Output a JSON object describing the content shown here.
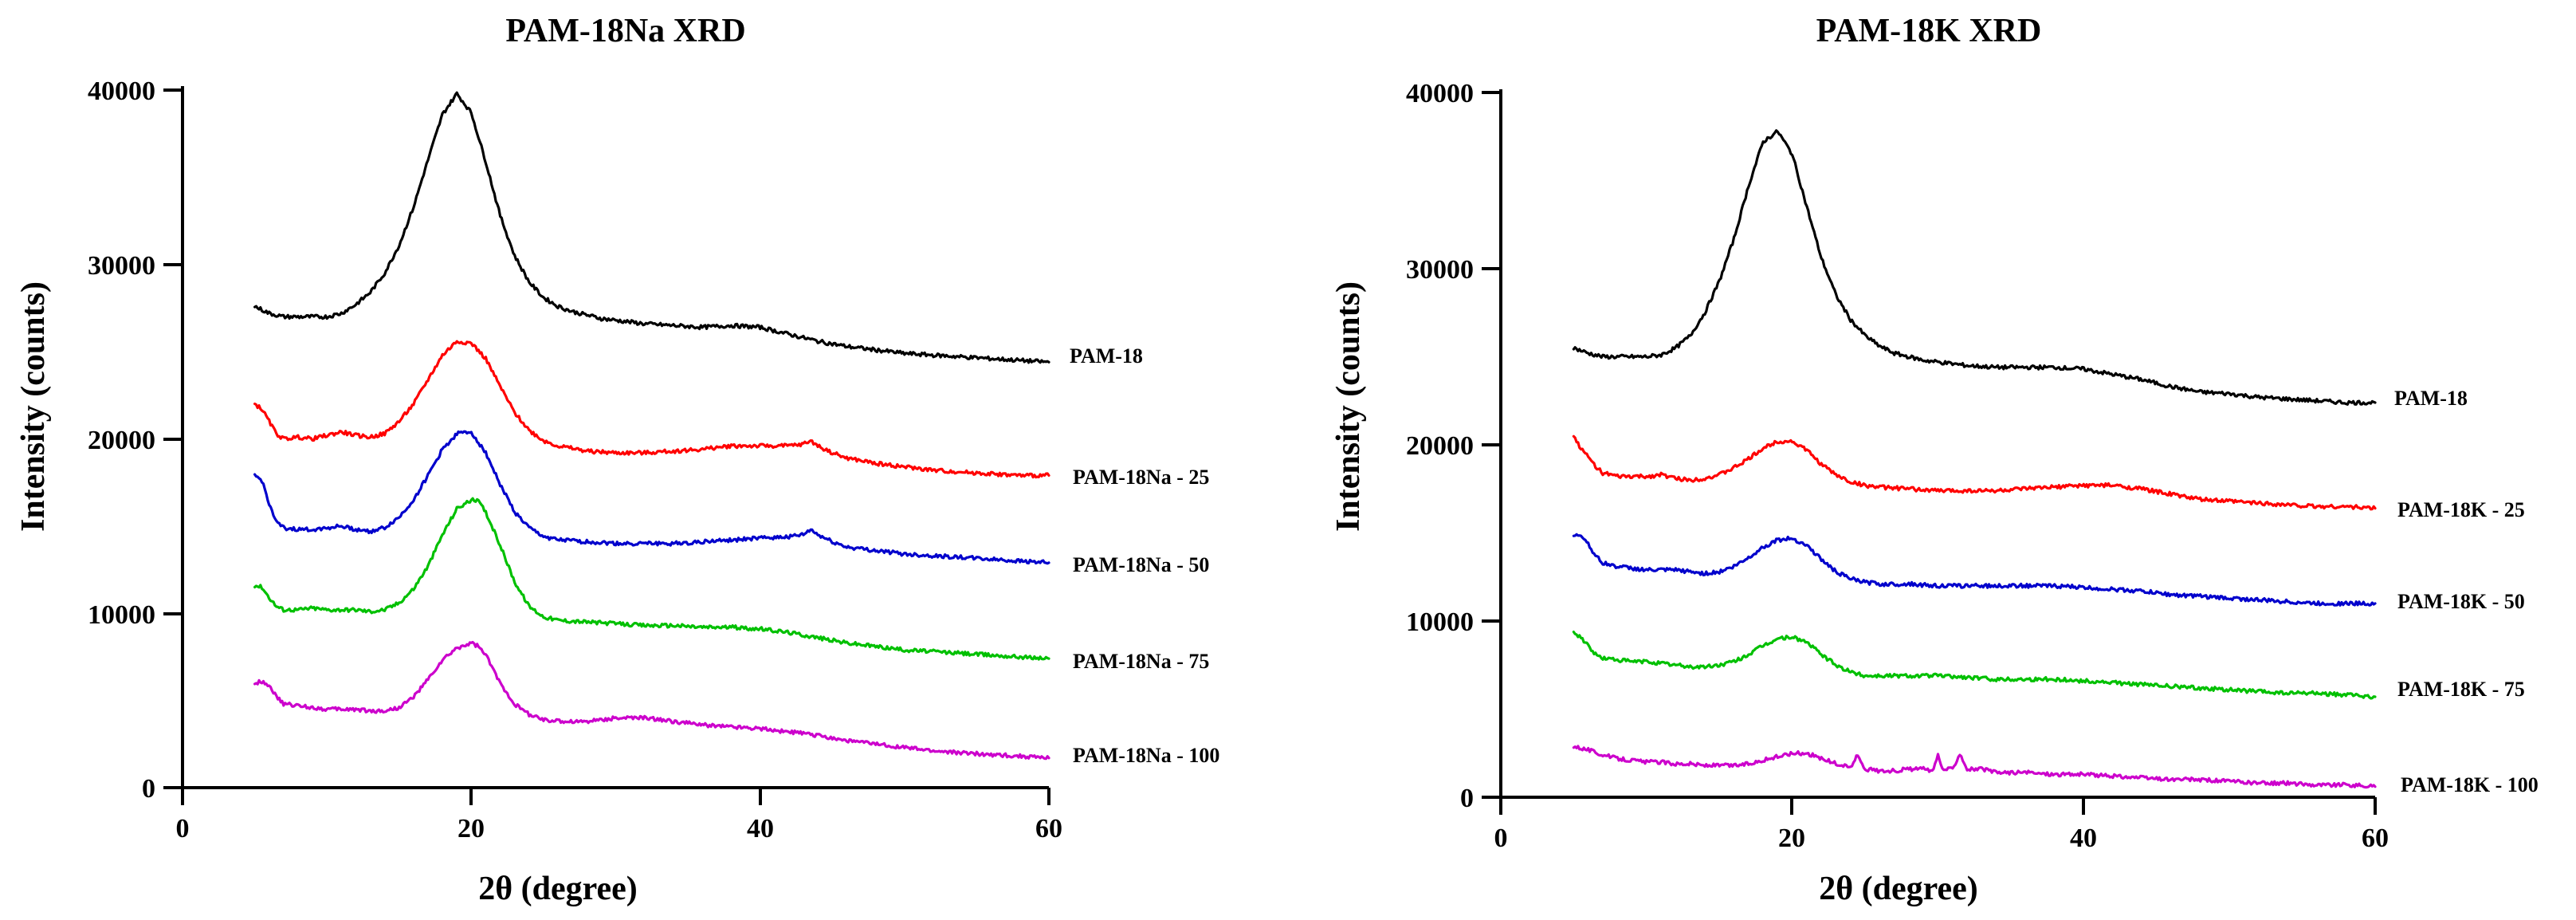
{
  "chart_data": [
    {
      "type": "line",
      "title": "PAM-18Na XRD",
      "xlabel": "2θ (degree)",
      "ylabel": "Intensity (counts)",
      "xlim": [
        0,
        60
      ],
      "ylim": [
        0,
        40000
      ],
      "xticks": [
        0,
        20,
        40,
        60
      ],
      "yticks": [
        0,
        10000,
        20000,
        30000,
        40000
      ],
      "grid": false,
      "series": [
        {
          "name": "PAM-18",
          "color": "#000000",
          "x": [
            5,
            6,
            7,
            8,
            9,
            10,
            11,
            12,
            13,
            14,
            15,
            16,
            17,
            18,
            19,
            20,
            21,
            22,
            23,
            24,
            25,
            26,
            27,
            28,
            29,
            30,
            32,
            34,
            36,
            38,
            40,
            42,
            44,
            46,
            48,
            50,
            52,
            54,
            56,
            58,
            60
          ],
          "y": [
            27600,
            27200,
            27000,
            27000,
            27000,
            27000,
            27200,
            27700,
            28400,
            29500,
            31100,
            33300,
            36000,
            38600,
            39800,
            38700,
            35900,
            32800,
            30500,
            29000,
            28100,
            27600,
            27300,
            27100,
            26900,
            26800,
            26600,
            26500,
            26400,
            26500,
            26400,
            26000,
            25600,
            25300,
            25100,
            24900,
            24800,
            24700,
            24600,
            24500,
            24400
          ]
        },
        {
          "name": "PAM-18Na - 25",
          "color": "#ff0000",
          "x": [
            5,
            5.5,
            6,
            6.5,
            7,
            8,
            9,
            10,
            11,
            12,
            13,
            14,
            15,
            16,
            17,
            18,
            19,
            20,
            21,
            22,
            23,
            24,
            25,
            26,
            28,
            30,
            32,
            34,
            36,
            38,
            40,
            42,
            43,
            43.5,
            44,
            45,
            46,
            48,
            50,
            52,
            54,
            56,
            58,
            60
          ],
          "y": [
            22000,
            21700,
            21000,
            20300,
            20000,
            20100,
            20000,
            20200,
            20400,
            20200,
            20100,
            20300,
            21000,
            22000,
            23400,
            24800,
            25600,
            25500,
            24600,
            23000,
            21500,
            20500,
            19900,
            19600,
            19300,
            19200,
            19200,
            19300,
            19400,
            19600,
            19600,
            19600,
            19700,
            19900,
            19600,
            19200,
            18900,
            18600,
            18400,
            18200,
            18100,
            18000,
            17900,
            17900
          ]
        },
        {
          "name": "PAM-18Na - 50",
          "color": "#0000cc",
          "x": [
            5,
            5.5,
            6,
            6.5,
            7,
            8,
            9,
            10,
            11,
            12,
            13,
            14,
            15,
            16,
            17,
            18,
            19,
            20,
            21,
            22,
            23,
            24,
            25,
            26,
            28,
            30,
            32,
            34,
            36,
            38,
            40,
            42,
            43,
            43.5,
            44,
            45,
            46,
            48,
            50,
            52,
            54,
            56,
            58,
            60
          ],
          "y": [
            17900,
            17600,
            16300,
            15200,
            14900,
            14800,
            14800,
            14900,
            15000,
            14800,
            14700,
            14900,
            15500,
            16500,
            17900,
            19400,
            20300,
            20400,
            19200,
            17400,
            15800,
            14900,
            14400,
            14200,
            14100,
            14000,
            14000,
            14000,
            14100,
            14200,
            14300,
            14400,
            14500,
            14800,
            14500,
            14100,
            13800,
            13600,
            13400,
            13300,
            13200,
            13100,
            13000,
            12900
          ]
        },
        {
          "name": "PAM-18Na - 75",
          "color": "#00c000",
          "x": [
            5,
            5.5,
            6,
            6.5,
            7,
            8,
            9,
            10,
            11,
            12,
            13,
            14,
            15,
            16,
            17,
            18,
            19,
            20,
            20.5,
            21,
            22,
            23,
            24,
            25,
            26,
            28,
            30,
            32,
            34,
            36,
            38,
            40,
            42,
            44,
            46,
            48,
            50,
            52,
            54,
            56,
            58,
            60
          ],
          "y": [
            11600,
            11500,
            10900,
            10400,
            10200,
            10200,
            10300,
            10200,
            10200,
            10200,
            10100,
            10200,
            10600,
            11400,
            12700,
            14500,
            16000,
            16500,
            16400,
            15800,
            13900,
            11800,
            10400,
            9800,
            9600,
            9500,
            9400,
            9300,
            9300,
            9200,
            9200,
            9100,
            8900,
            8600,
            8300,
            8100,
            7900,
            7800,
            7700,
            7600,
            7500,
            7400
          ]
        },
        {
          "name": "PAM-18Na - 100",
          "color": "#cc00cc",
          "x": [
            5,
            5.5,
            6,
            6.5,
            7,
            8,
            9,
            10,
            11,
            12,
            13,
            14,
            15,
            16,
            17,
            18,
            19,
            20,
            20.5,
            21,
            22,
            23,
            24,
            25,
            26,
            28,
            30,
            32,
            34,
            36,
            38,
            40,
            42,
            44,
            46,
            48,
            50,
            52,
            54,
            56,
            58,
            60
          ],
          "y": [
            6000,
            6100,
            5900,
            5200,
            4800,
            4700,
            4600,
            4500,
            4500,
            4500,
            4400,
            4400,
            4600,
            5200,
            6200,
            7300,
            8000,
            8300,
            8100,
            7600,
            6000,
            4800,
            4200,
            3900,
            3800,
            3800,
            4000,
            4000,
            3800,
            3600,
            3500,
            3400,
            3200,
            3000,
            2700,
            2500,
            2300,
            2100,
            2000,
            1900,
            1800,
            1700
          ]
        }
      ]
    },
    {
      "type": "line",
      "title": "PAM-18K XRD",
      "xlabel": "2θ (degree)",
      "ylabel": "Intensity (counts)",
      "xlim": [
        0,
        60
      ],
      "ylim": [
        0,
        40000
      ],
      "xticks": [
        0,
        20,
        40,
        60
      ],
      "yticks": [
        0,
        10000,
        20000,
        30000,
        40000
      ],
      "grid": false,
      "series": [
        {
          "name": "PAM-18",
          "color": "#000000",
          "x": [
            5,
            6,
            7,
            8,
            9,
            10,
            11,
            12,
            13,
            14,
            15,
            16,
            17,
            18,
            19,
            20,
            21,
            22,
            23,
            24,
            25,
            26,
            27,
            28,
            29,
            30,
            32,
            34,
            36,
            38,
            40,
            42,
            44,
            46,
            48,
            50,
            52,
            54,
            56,
            58,
            60
          ],
          "y": [
            25500,
            25200,
            25000,
            25000,
            25000,
            25000,
            25100,
            25500,
            26200,
            27500,
            29300,
            31700,
            34700,
            37200,
            37800,
            36500,
            33500,
            30600,
            28500,
            27100,
            26200,
            25600,
            25200,
            25000,
            24800,
            24700,
            24500,
            24400,
            24400,
            24400,
            24300,
            24000,
            23700,
            23300,
            23000,
            22900,
            22700,
            22600,
            22500,
            22400,
            22400
          ]
        },
        {
          "name": "PAM-18K - 25",
          "color": "#ff0000",
          "x": [
            5,
            5.5,
            6,
            6.5,
            7,
            8,
            9,
            10,
            11,
            12,
            13,
            14,
            15,
            16,
            17,
            18,
            19,
            20,
            21,
            22,
            23,
            24,
            25,
            26,
            28,
            30,
            32,
            34,
            36,
            38,
            40,
            42,
            44,
            46,
            48,
            50,
            52,
            54,
            56,
            58,
            60
          ],
          "y": [
            20500,
            19800,
            19300,
            18800,
            18400,
            18200,
            18200,
            18200,
            18300,
            18100,
            18000,
            18100,
            18300,
            18700,
            19200,
            19800,
            20200,
            20200,
            19700,
            18900,
            18300,
            17900,
            17700,
            17600,
            17500,
            17400,
            17400,
            17400,
            17500,
            17600,
            17700,
            17700,
            17500,
            17200,
            16900,
            16800,
            16700,
            16600,
            16500,
            16500,
            16400
          ]
        },
        {
          "name": "PAM-18K - 50",
          "color": "#0000cc",
          "x": [
            5,
            5.5,
            6,
            6.5,
            7,
            8,
            9,
            10,
            11,
            12,
            13,
            14,
            15,
            16,
            17,
            18,
            19,
            20,
            21,
            22,
            23,
            24,
            25,
            26,
            28,
            30,
            32,
            34,
            36,
            38,
            40,
            42,
            44,
            46,
            48,
            50,
            52,
            54,
            56,
            58,
            60
          ],
          "y": [
            14800,
            14900,
            14400,
            13700,
            13300,
            13100,
            13000,
            12900,
            12900,
            12900,
            12800,
            12700,
            12800,
            13100,
            13600,
            14200,
            14600,
            14700,
            14300,
            13500,
            12800,
            12400,
            12200,
            12100,
            12100,
            12000,
            12000,
            12000,
            12000,
            12000,
            11900,
            11800,
            11700,
            11500,
            11400,
            11300,
            11200,
            11100,
            11000,
            11000,
            11000
          ]
        },
        {
          "name": "PAM-18K - 75",
          "color": "#00c000",
          "x": [
            5,
            5.5,
            6,
            6.5,
            7,
            8,
            9,
            10,
            11,
            12,
            13,
            14,
            15,
            16,
            17,
            18,
            19,
            20,
            21,
            22,
            23,
            24,
            25,
            26,
            28,
            30,
            32,
            34,
            36,
            38,
            40,
            42,
            44,
            46,
            48,
            50,
            52,
            54,
            56,
            58,
            60
          ],
          "y": [
            9300,
            9100,
            8600,
            8100,
            7900,
            7800,
            7700,
            7700,
            7600,
            7500,
            7400,
            7400,
            7500,
            7700,
            8100,
            8600,
            9000,
            9100,
            8800,
            8100,
            7500,
            7100,
            6900,
            6900,
            6900,
            6900,
            6800,
            6700,
            6700,
            6700,
            6600,
            6500,
            6400,
            6300,
            6200,
            6100,
            6000,
            5900,
            5900,
            5800,
            5700
          ]
        },
        {
          "name": "PAM-18K - 100",
          "color": "#cc00cc",
          "x": [
            5,
            6,
            7,
            8,
            9,
            10,
            11,
            12,
            13,
            14,
            15,
            16,
            17,
            18,
            19,
            20,
            21,
            22,
            23,
            24,
            24.5,
            25,
            26,
            27,
            28,
            29,
            29.7,
            30,
            30.3,
            31,
            31.5,
            32,
            33,
            34,
            35,
            36,
            38,
            40,
            42,
            44,
            46,
            48,
            50,
            52,
            54,
            56,
            58,
            60
          ],
          "y": [
            2900,
            2700,
            2400,
            2200,
            2100,
            2000,
            2000,
            1900,
            1900,
            1800,
            1800,
            1800,
            1900,
            2100,
            2300,
            2500,
            2500,
            2200,
            1900,
            1700,
            2400,
            1600,
            1500,
            1500,
            1600,
            1600,
            1500,
            2400,
            1600,
            1600,
            2500,
            1600,
            1600,
            1400,
            1400,
            1400,
            1300,
            1300,
            1200,
            1100,
            1000,
            1000,
            900,
            800,
            800,
            700,
            700,
            600
          ]
        }
      ]
    }
  ]
}
